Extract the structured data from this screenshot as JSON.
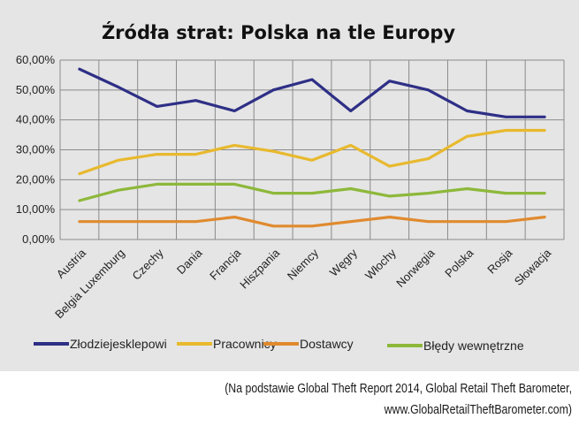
{
  "chart_data": {
    "type": "line",
    "title": "Źródła strat: Polska na tle Europy",
    "xlabel": "",
    "ylabel": "",
    "ylim": [
      0,
      60
    ],
    "yticks": [
      "0,00%",
      "10,00%",
      "20,00%",
      "30,00%",
      "40,00%",
      "50,00%",
      "60,00%"
    ],
    "grid": true,
    "legend_position": "bottom",
    "categories": [
      "Austria",
      "Belgia Luxemburg",
      "Czechy",
      "Dania",
      "Francja",
      "Hiszpania",
      "Niemcy",
      "Węgry",
      "Włochy",
      "Norwegia",
      "Polska",
      "Rosja",
      "Słowacja"
    ],
    "series": [
      {
        "name": "Złodziejesklepowi",
        "color": "#2e2f86",
        "values": [
          57.0,
          51.0,
          44.5,
          46.5,
          43.0,
          50.0,
          53.5,
          43.0,
          53.0,
          50.0,
          43.0,
          41.0,
          41.0
        ]
      },
      {
        "name": "Pracownicy",
        "color": "#e8b92e",
        "values": [
          22.0,
          26.5,
          28.5,
          28.5,
          31.5,
          29.5,
          26.5,
          31.5,
          24.5,
          27.0,
          34.5,
          36.5,
          36.5
        ]
      },
      {
        "name": "Dostawcy",
        "color": "#e08a2e",
        "values": [
          6.0,
          6.0,
          6.0,
          6.0,
          7.5,
          4.5,
          4.5,
          6.0,
          7.5,
          6.0,
          6.0,
          6.0,
          7.5
        ]
      },
      {
        "name": "Błędy wewnętrzne",
        "color": "#8db83a",
        "values": [
          13.0,
          16.5,
          18.5,
          18.5,
          18.5,
          15.5,
          15.5,
          17.0,
          14.5,
          15.5,
          17.0,
          15.5,
          15.5
        ]
      }
    ]
  },
  "source_note": {
    "line1": "(Na podstawie Global Theft Report 2014, Global Retail Theft Barometer,",
    "line2": "www.GlobalRetailTheftBarometer.com)"
  }
}
